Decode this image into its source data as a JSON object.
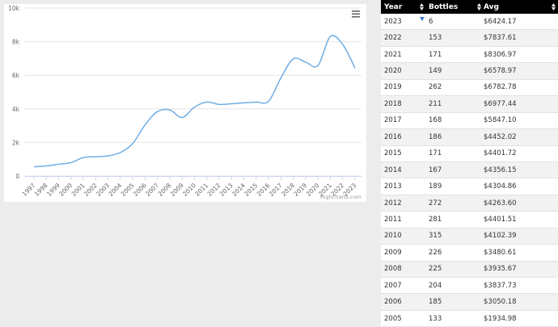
{
  "chart_data": {
    "type": "line",
    "credit": "Highcharts.com",
    "categories": [
      "1997",
      "1998",
      "1999",
      "2000",
      "2001",
      "2002",
      "2003",
      "2004",
      "2005",
      "2006",
      "2007",
      "2008",
      "2009",
      "2010",
      "2011",
      "2012",
      "2013",
      "2014",
      "2015",
      "2016",
      "2017",
      "2018",
      "2019",
      "2020",
      "2021",
      "2022",
      "2023"
    ],
    "values": [
      550,
      600,
      700,
      800,
      1100,
      1150,
      1200,
      1400,
      1934.98,
      3050.18,
      3837.73,
      3935.67,
      3480.61,
      4102.39,
      4401.51,
      4263.6,
      4304.86,
      4356.15,
      4401.72,
      4452.02,
      5847.1,
      6977.44,
      6782.78,
      6578.97,
      8306.97,
      7837.61,
      6424.17
    ],
    "color": "#6faee6",
    "ylim": [
      0,
      10000
    ],
    "yticks": [
      0,
      {
        "value": 2000,
        "label": "2k"
      },
      {
        "value": 4000,
        "label": "4k"
      },
      {
        "value": 6000,
        "label": "6k"
      },
      {
        "value": 8000,
        "label": "8k"
      },
      {
        "value": 10000,
        "label": "10k"
      }
    ],
    "grid": true
  },
  "table": {
    "headers": [
      "Year",
      "Bottles",
      "Avg"
    ],
    "rows": [
      [
        "2023",
        "6",
        "$6424.17"
      ],
      [
        "2022",
        "153",
        "$7837.61"
      ],
      [
        "2021",
        "171",
        "$8306.97"
      ],
      [
        "2020",
        "149",
        "$6578.97"
      ],
      [
        "2019",
        "262",
        "$6782.78"
      ],
      [
        "2018",
        "211",
        "$6977.44"
      ],
      [
        "2017",
        "168",
        "$5847.10"
      ],
      [
        "2016",
        "186",
        "$4452.02"
      ],
      [
        "2015",
        "171",
        "$4401.72"
      ],
      [
        "2014",
        "167",
        "$4356.15"
      ],
      [
        "2013",
        "189",
        "$4304.86"
      ],
      [
        "2012",
        "272",
        "$4263.60"
      ],
      [
        "2011",
        "281",
        "$4401.51"
      ],
      [
        "2010",
        "315",
        "$4102.39"
      ],
      [
        "2009",
        "226",
        "$3480.61"
      ],
      [
        "2008",
        "225",
        "$3935.67"
      ],
      [
        "2007",
        "204",
        "$3837.73"
      ],
      [
        "2006",
        "185",
        "$3050.18"
      ],
      [
        "2005",
        "133",
        "$1934.98"
      ]
    ]
  }
}
